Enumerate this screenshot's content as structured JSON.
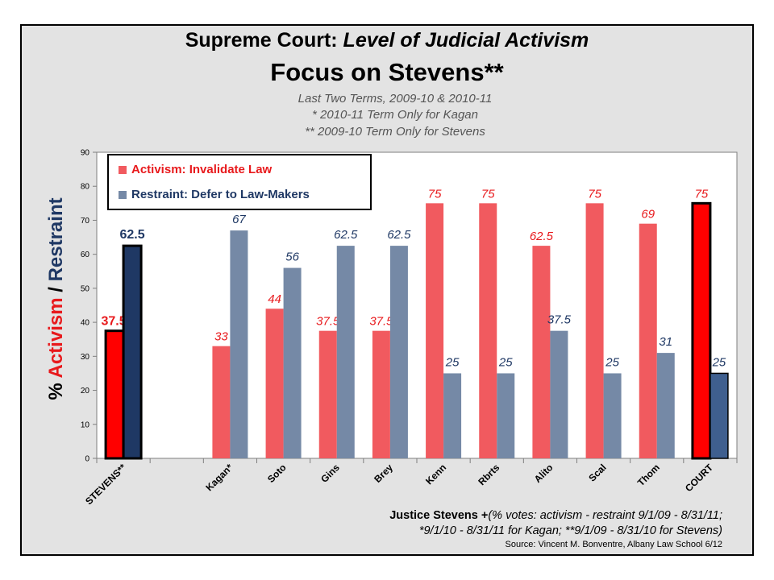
{
  "header": {
    "title_prefix": "Supreme Court: ",
    "title_italic": "Level of Judicial Activism",
    "title_line2": "Focus on Stevens**",
    "sub1": "Last Two Terms, 2009-10 & 2010-11",
    "sub2": "* 2010-11 Term Only for Kagan",
    "sub3": "** 2009-10 Term Only for Stevens"
  },
  "axis_label": {
    "pct": "% ",
    "activism": "Activism",
    "slash": " / ",
    "restraint": "Restraint"
  },
  "footer": {
    "bold_part": "Justice Stevens +",
    "italic_part": "(% votes: activism - restraint 9/1/09 - 8/31/11;",
    "line2": "*9/1/10 - 8/31/11 for Kagan; **9/1/09 - 8/31/10 for Stevens)",
    "source": "Source: Vincent M. Bonventre,  Albany Law School  6/12"
  },
  "legend": {
    "activism": "Activism: Invalidate Law",
    "restraint": "Restraint: Defer to Law-Makers"
  },
  "colors": {
    "activism": "#f15a5f",
    "restraint": "#7589a6",
    "activism_highlight": "#ff0000",
    "restraint_highlight": "#1f3864",
    "court_restraint": "#3f5f8f",
    "activism_label": "#e8191c",
    "restraint_label": "#1f3864"
  },
  "chart_data": {
    "type": "bar",
    "categories": [
      "STEVENS**",
      "",
      "Kagan*",
      "Soto",
      "Gins",
      "Brey",
      "Kenn",
      "Rbrts",
      "Alito",
      "Scal",
      "Thom",
      "COURT"
    ],
    "series": [
      {
        "name": "Activism: Invalidate Law",
        "values": [
          37.5,
          null,
          33,
          44,
          37.5,
          37.5,
          75,
          75,
          62.5,
          75,
          69,
          75
        ]
      },
      {
        "name": "Restraint: Defer to Law-Makers",
        "values": [
          62.5,
          null,
          67,
          56,
          62.5,
          62.5,
          25,
          25,
          37.5,
          25,
          31,
          25
        ]
      }
    ],
    "value_labels": {
      "activism": [
        "37.5",
        "",
        "33",
        "44",
        "37.5",
        "37.5",
        "75",
        "75",
        "62.5",
        "75",
        "69",
        "75"
      ],
      "restraint": [
        "62.5",
        "",
        "67",
        "56",
        "62.5",
        "62.5",
        "25",
        "25",
        "37.5",
        "25",
        "31",
        "25"
      ]
    },
    "ylim": [
      0,
      90
    ],
    "yticks": [
      "0",
      "10",
      "20",
      "30",
      "40",
      "50",
      "60",
      "70",
      "80",
      "90"
    ],
    "ylabel": "% Activism / Restraint",
    "grid": false,
    "legend_position": "top-left"
  }
}
